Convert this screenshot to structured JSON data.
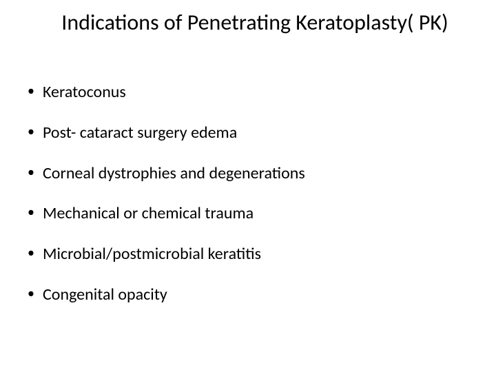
{
  "slide": {
    "title": "Indications of Penetrating Keratoplasty( PK)",
    "title_fontsize": 32,
    "title_color": "#000000",
    "background_color": "#ffffff",
    "bullets": [
      "Keratoconus",
      "Post- cataract surgery edema",
      "Corneal dystrophies and degenerations",
      "Mechanical or chemical trauma",
      "Microbial/postmicrobial keratitis",
      "Congenital opacity"
    ],
    "bullet_fontsize": 24,
    "bullet_color": "#000000",
    "bullet_marker": "•",
    "font_family": "Calibri"
  }
}
